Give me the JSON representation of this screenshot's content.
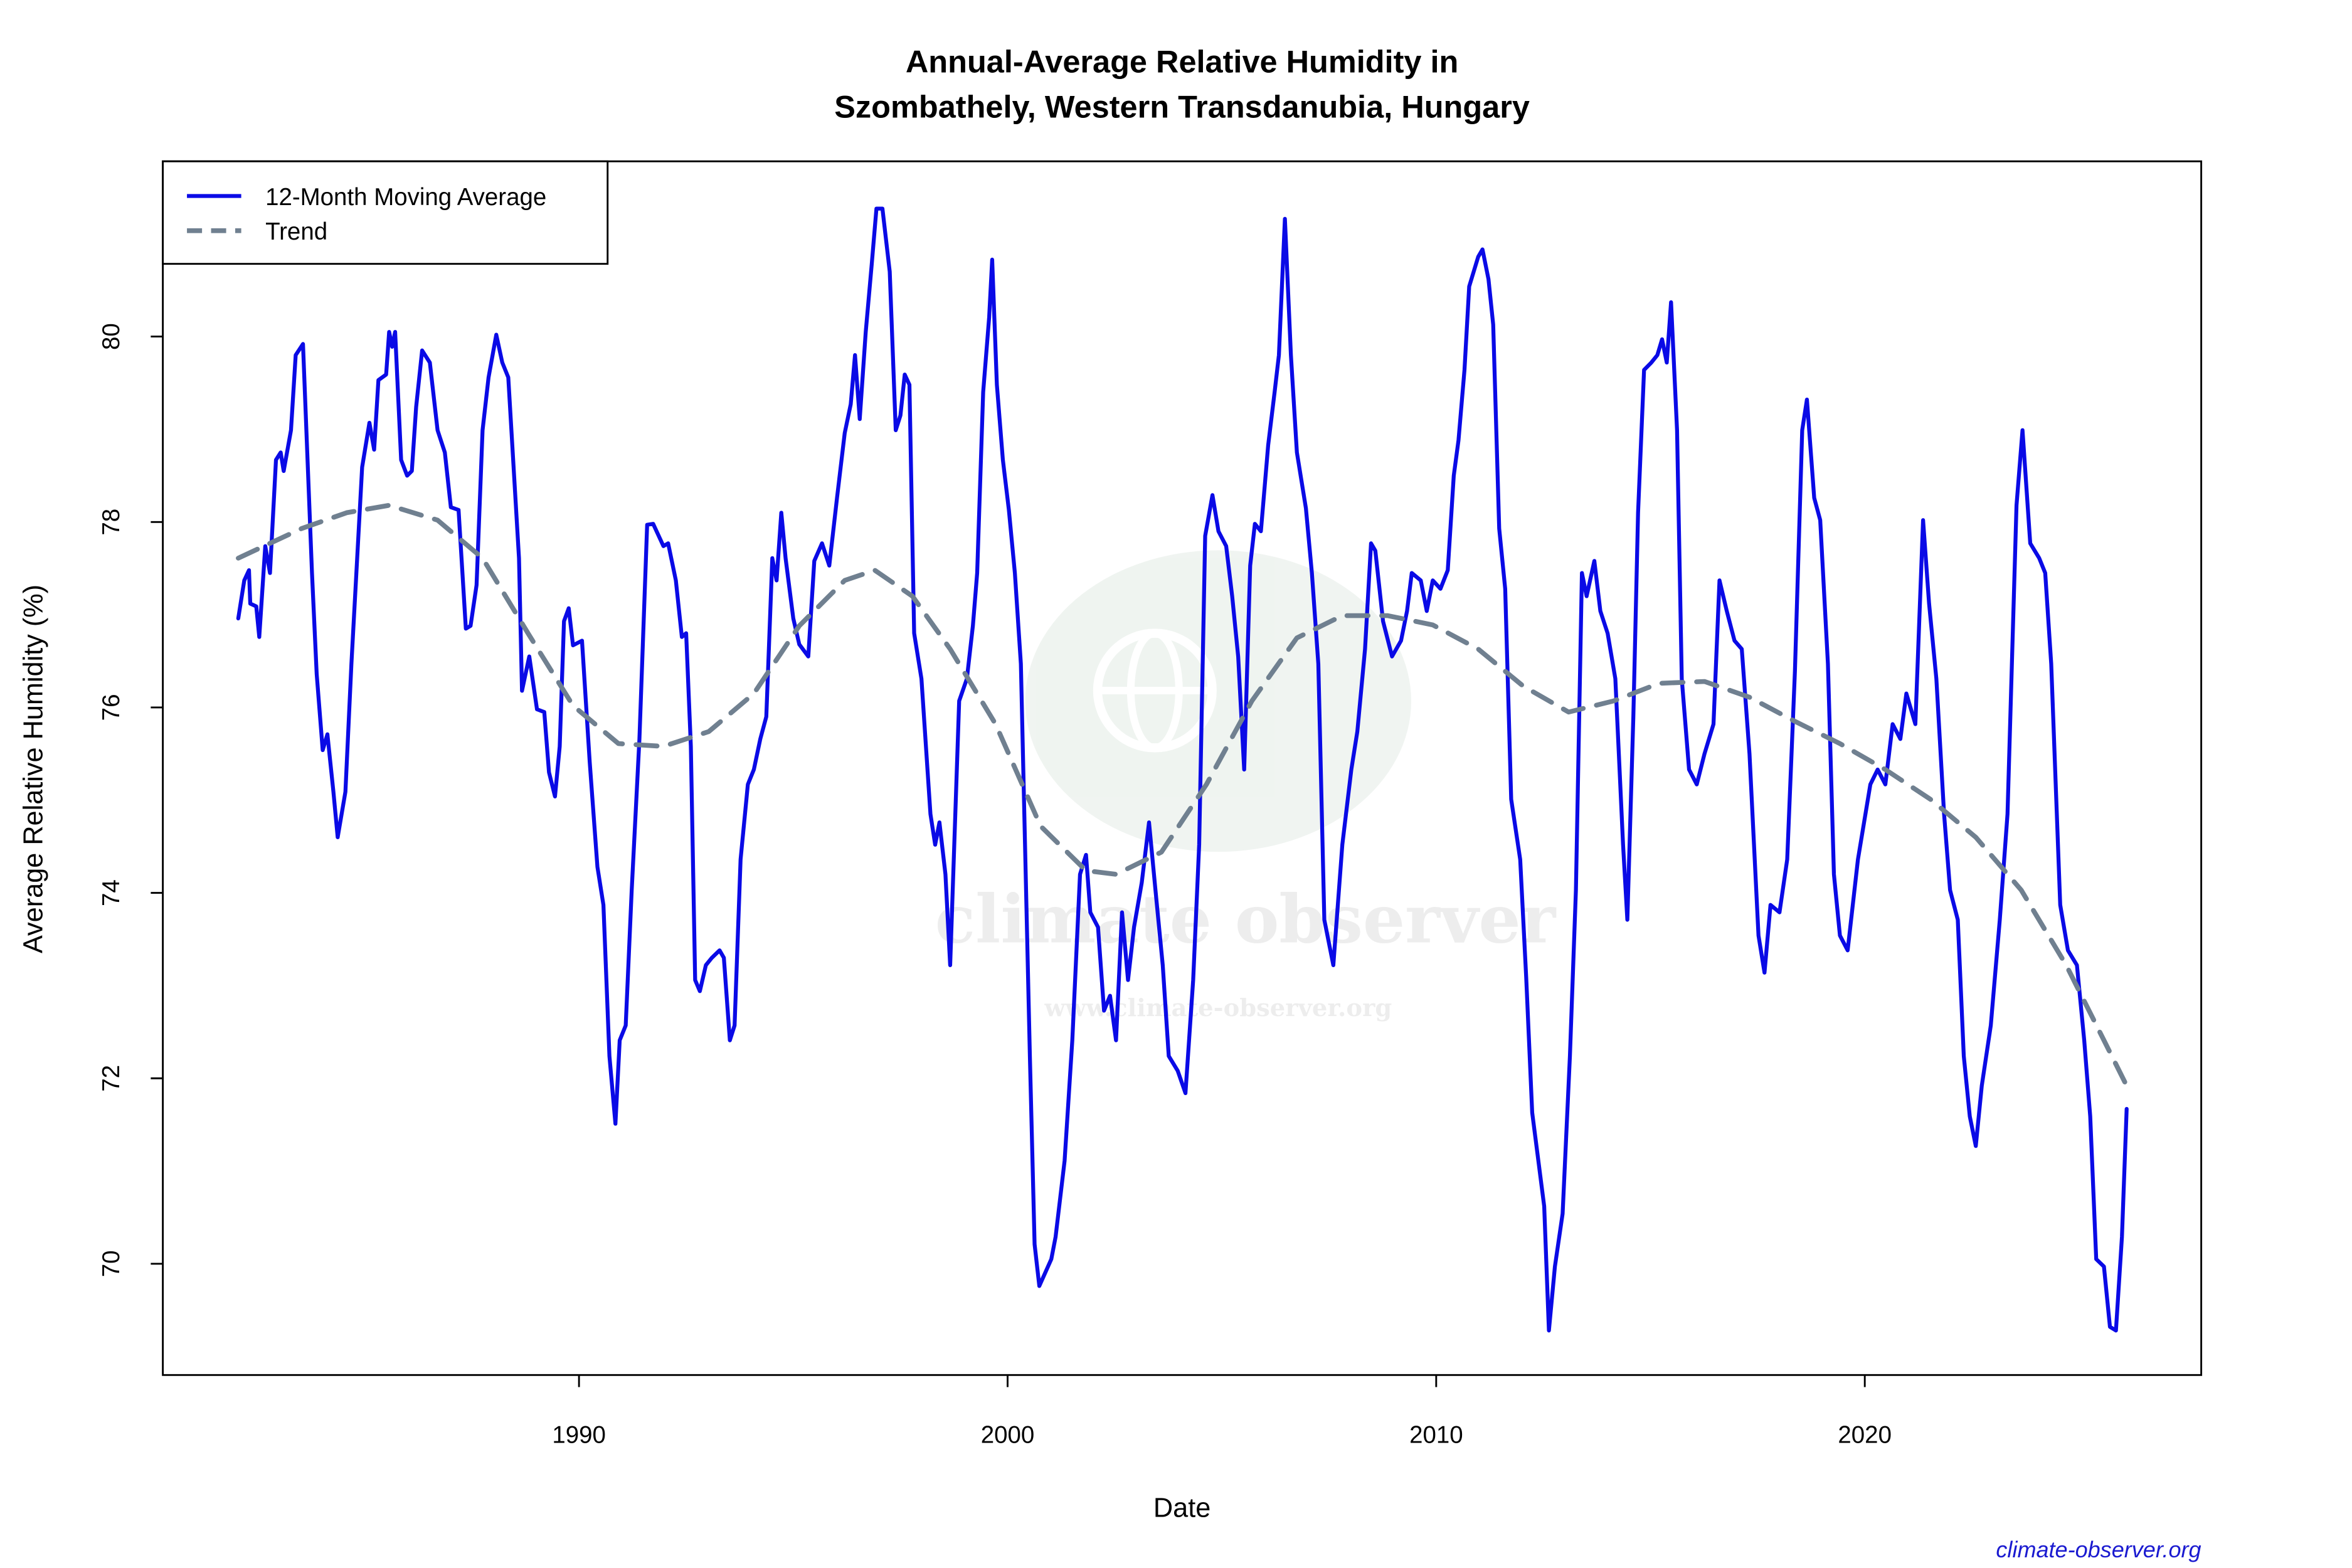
{
  "chart_data": {
    "type": "line",
    "title": [
      "Annual-Average Relative Humidity in",
      "Szombathely, Western Transdanubia, Hungary"
    ],
    "xlabel": "Date",
    "ylabel": "Average Relative Humidity (%)",
    "credit": "climate-observer.org",
    "watermark": [
      "climate observer",
      "www.climate-observer.org"
    ],
    "legend_position": "top-left",
    "xlim": [
      1980.29,
      2027.85
    ],
    "ylim": [
      68.8,
      81.89
    ],
    "xticks": [
      1990,
      2000,
      2010,
      2020
    ],
    "yticks": [
      70,
      72,
      74,
      76,
      78,
      80
    ],
    "series": [
      {
        "name": "12-Month Moving Average",
        "color": "#0a0ae6",
        "line_style": "solid",
        "x": [
          1982.05,
          1982.19,
          1982.3,
          1982.33,
          1982.47,
          1982.54,
          1982.68,
          1982.79,
          1982.93,
          1983.04,
          1983.11,
          1983.28,
          1983.39,
          1983.56,
          1983.77,
          1983.88,
          1984.02,
          1984.13,
          1984.27,
          1984.37,
          1984.55,
          1984.69,
          1984.94,
          1985.11,
          1985.22,
          1985.32,
          1985.5,
          1985.57,
          1985.64,
          1985.71,
          1985.85,
          1985.99,
          1986.1,
          1986.2,
          1986.34,
          1986.52,
          1986.7,
          1986.87,
          1987.01,
          1987.19,
          1987.36,
          1987.47,
          1987.61,
          1987.75,
          1987.89,
          1988.07,
          1988.21,
          1988.35,
          1988.6,
          1988.67,
          1988.84,
          1989.02,
          1989.19,
          1989.3,
          1989.44,
          1989.55,
          1989.65,
          1989.76,
          1989.86,
          1990.07,
          1990.25,
          1990.43,
          1990.57,
          1990.71,
          1990.85,
          1990.95,
          1991.09,
          1991.23,
          1991.41,
          1991.59,
          1991.73,
          1991.97,
          1992.08,
          1992.26,
          1992.4,
          1992.5,
          1992.61,
          1992.71,
          1992.82,
          1992.96,
          1993.1,
          1993.28,
          1993.38,
          1993.52,
          1993.63,
          1993.77,
          1993.94,
          1994.08,
          1994.23,
          1994.37,
          1994.51,
          1994.61,
          1994.72,
          1994.82,
          1995.0,
          1995.14,
          1995.35,
          1995.49,
          1995.67,
          1995.84,
          1996.02,
          1996.2,
          1996.34,
          1996.44,
          1996.55,
          1996.69,
          1996.83,
          1996.94,
          1997.08,
          1997.25,
          1997.39,
          1997.5,
          1997.6,
          1997.71,
          1997.82,
          1997.99,
          1998.2,
          1998.31,
          1998.41,
          1998.55,
          1998.66,
          1998.87,
          1999.05,
          1999.19,
          1999.29,
          1999.43,
          1999.57,
          1999.64,
          1999.75,
          1999.89,
          2000.03,
          2000.17,
          2000.31,
          2000.52,
          2000.63,
          2000.74,
          2001.02,
          2001.12,
          2001.33,
          2001.51,
          2001.69,
          2001.83,
          2001.93,
          2002.11,
          2002.25,
          2002.39,
          2002.53,
          2002.67,
          2002.81,
          2002.95,
          2003.13,
          2003.3,
          2003.45,
          2003.62,
          2003.76,
          2003.97,
          2004.15,
          2004.33,
          2004.47,
          2004.61,
          2004.78,
          2004.92,
          2005.1,
          2005.24,
          2005.38,
          2005.52,
          2005.66,
          2005.77,
          2005.91,
          2006.08,
          2006.23,
          2006.33,
          2006.47,
          2006.61,
          2006.75,
          2006.96,
          2007.1,
          2007.25,
          2007.39,
          2007.6,
          2007.81,
          2008.02,
          2008.16,
          2008.34,
          2008.48,
          2008.58,
          2008.76,
          2008.97,
          2009.18,
          2009.32,
          2009.43,
          2009.64,
          2009.78,
          2009.92,
          2010.1,
          2010.27,
          2010.41,
          2010.52,
          2010.66,
          2010.77,
          2010.98,
          2011.08,
          2011.22,
          2011.33,
          2011.47,
          2011.61,
          2011.75,
          2011.96,
          2012.1,
          2012.24,
          2012.52,
          2012.63,
          2012.77,
          2012.95,
          2013.12,
          2013.26,
          2013.4,
          2013.51,
          2013.69,
          2013.83,
          2014.0,
          2014.18,
          2014.36,
          2014.46,
          2014.6,
          2014.71,
          2014.85,
          2015.02,
          2015.16,
          2015.27,
          2015.38,
          2015.48,
          2015.62,
          2015.73,
          2015.9,
          2016.08,
          2016.26,
          2016.47,
          2016.61,
          2016.78,
          2016.96,
          2017.13,
          2017.31,
          2017.52,
          2017.66,
          2017.8,
          2018.01,
          2018.19,
          2018.37,
          2018.54,
          2018.65,
          2018.82,
          2018.96,
          2019.14,
          2019.28,
          2019.42,
          2019.6,
          2019.84,
          2020.13,
          2020.3,
          2020.48,
          2020.65,
          2020.83,
          2020.97,
          2021.18,
          2021.36,
          2021.5,
          2021.67,
          2021.85,
          2021.99,
          2022.17,
          2022.31,
          2022.45,
          2022.59,
          2022.73,
          2022.94,
          2023.15,
          2023.33,
          2023.54,
          2023.68,
          2023.86,
          2024.07,
          2024.21,
          2024.35,
          2024.56,
          2024.74,
          2024.95,
          2025.12,
          2025.26,
          2025.4,
          2025.58,
          2025.72,
          2025.86,
          2026.0,
          2026.11
        ],
        "values": [
          76.96,
          77.37,
          77.48,
          77.12,
          77.09,
          76.76,
          77.74,
          77.45,
          78.67,
          78.75,
          78.55,
          78.99,
          79.8,
          79.92,
          77.45,
          76.36,
          75.54,
          75.71,
          75.09,
          74.6,
          75.09,
          76.47,
          78.59,
          79.07,
          78.78,
          79.53,
          79.59,
          80.05,
          79.89,
          80.05,
          78.67,
          78.5,
          78.55,
          79.24,
          79.85,
          79.72,
          78.99,
          78.75,
          78.16,
          78.13,
          76.85,
          76.88,
          77.32,
          78.99,
          79.56,
          80.02,
          79.72,
          79.56,
          77.61,
          76.18,
          76.55,
          75.98,
          75.95,
          75.3,
          75.04,
          75.58,
          76.93,
          77.07,
          76.67,
          76.72,
          75.41,
          74.28,
          73.87,
          72.24,
          71.51,
          72.41,
          72.57,
          74.03,
          75.66,
          77.97,
          77.98,
          77.74,
          77.77,
          77.37,
          76.76,
          76.8,
          75.58,
          73.06,
          72.94,
          73.22,
          73.3,
          73.38,
          73.3,
          72.41,
          72.57,
          74.36,
          75.17,
          75.33,
          75.66,
          75.9,
          77.61,
          77.37,
          78.1,
          77.61,
          76.96,
          76.68,
          76.55,
          77.58,
          77.77,
          77.53,
          78.26,
          78.96,
          79.27,
          79.8,
          79.11,
          80.05,
          80.78,
          81.38,
          81.38,
          80.7,
          78.99,
          79.15,
          79.59,
          79.48,
          76.8,
          76.31,
          74.85,
          74.52,
          74.76,
          74.2,
          73.22,
          76.07,
          76.31,
          76.88,
          77.45,
          79.4,
          80.21,
          80.83,
          79.48,
          78.67,
          78.13,
          77.45,
          76.47,
          72.24,
          70.21,
          69.76,
          70.05,
          70.29,
          71.11,
          72.41,
          74.2,
          74.41,
          73.79,
          73.63,
          72.73,
          72.89,
          72.41,
          73.79,
          73.06,
          73.63,
          74.11,
          74.76,
          74.03,
          73.22,
          72.24,
          72.08,
          71.84,
          73.06,
          74.52,
          77.85,
          78.29,
          77.9,
          77.74,
          77.2,
          76.55,
          75.33,
          77.53,
          77.98,
          77.9,
          78.83,
          79.4,
          79.8,
          81.27,
          79.8,
          78.75,
          78.15,
          77.45,
          76.47,
          73.71,
          73.22,
          74.52,
          75.33,
          75.74,
          76.63,
          77.77,
          77.69,
          76.93,
          76.55,
          76.72,
          77.04,
          77.45,
          77.37,
          77.04,
          77.37,
          77.28,
          77.48,
          78.5,
          78.88,
          79.64,
          80.54,
          80.86,
          80.94,
          80.62,
          80.13,
          77.93,
          77.28,
          75.01,
          74.36,
          73.09,
          71.63,
          70.62,
          69.28,
          69.97,
          70.54,
          72.24,
          74.03,
          77.45,
          77.2,
          77.58,
          77.04,
          76.8,
          76.31,
          74.52,
          73.71,
          75.9,
          78.1,
          79.64,
          79.72,
          79.8,
          79.97,
          79.72,
          80.37,
          78.99,
          76.31,
          75.33,
          75.17,
          75.5,
          75.82,
          77.37,
          77.04,
          76.72,
          76.63,
          75.5,
          73.54,
          73.14,
          73.87,
          73.79,
          74.36,
          76.39,
          78.99,
          79.32,
          78.26,
          78.02,
          76.47,
          74.2,
          73.54,
          73.38,
          74.36,
          75.17,
          75.33,
          75.17,
          75.82,
          75.66,
          76.15,
          75.82,
          78.02,
          77.12,
          76.31,
          74.85,
          74.03,
          73.71,
          72.24,
          71.59,
          71.27,
          71.92,
          72.57,
          73.71,
          74.85,
          78.18,
          78.99,
          77.77,
          77.61,
          77.45,
          76.47,
          73.87,
          73.38,
          73.22,
          72.41,
          71.59,
          70.05,
          69.97,
          69.32,
          69.28,
          70.29,
          71.67
        ]
      },
      {
        "name": "Trend",
        "color": "#708090",
        "line_style": "dashed",
        "x": [
          1982.05,
          1983.53,
          1984.58,
          1985.57,
          1986.7,
          1987.75,
          1988.81,
          1989.86,
          1990.92,
          1991.97,
          1993.03,
          1994.08,
          1995.14,
          1996.2,
          1996.9,
          1997.78,
          1998.66,
          1999.72,
          2000.77,
          2001.83,
          2002.53,
          2003.59,
          2004.64,
          2005.7,
          2006.75,
          2007.81,
          2008.87,
          2009.92,
          2010.98,
          2012.03,
          2013.09,
          2014.14,
          2015.2,
          2016.26,
          2017.31,
          2018.37,
          2019.42,
          2020.48,
          2021.53,
          2022.59,
          2023.65,
          2024.7,
          2025.58,
          2026.11
        ],
        "values": [
          77.61,
          77.93,
          78.1,
          78.18,
          78.02,
          77.61,
          76.8,
          76.02,
          75.61,
          75.58,
          75.74,
          76.15,
          76.88,
          77.37,
          77.48,
          77.2,
          76.63,
          75.82,
          74.72,
          74.24,
          74.2,
          74.44,
          75.17,
          76.07,
          76.75,
          76.99,
          76.99,
          76.89,
          76.63,
          76.23,
          75.95,
          76.07,
          76.26,
          76.28,
          76.11,
          75.85,
          75.61,
          75.33,
          75.01,
          74.6,
          74.03,
          73.22,
          72.41,
          71.92
        ]
      }
    ]
  }
}
